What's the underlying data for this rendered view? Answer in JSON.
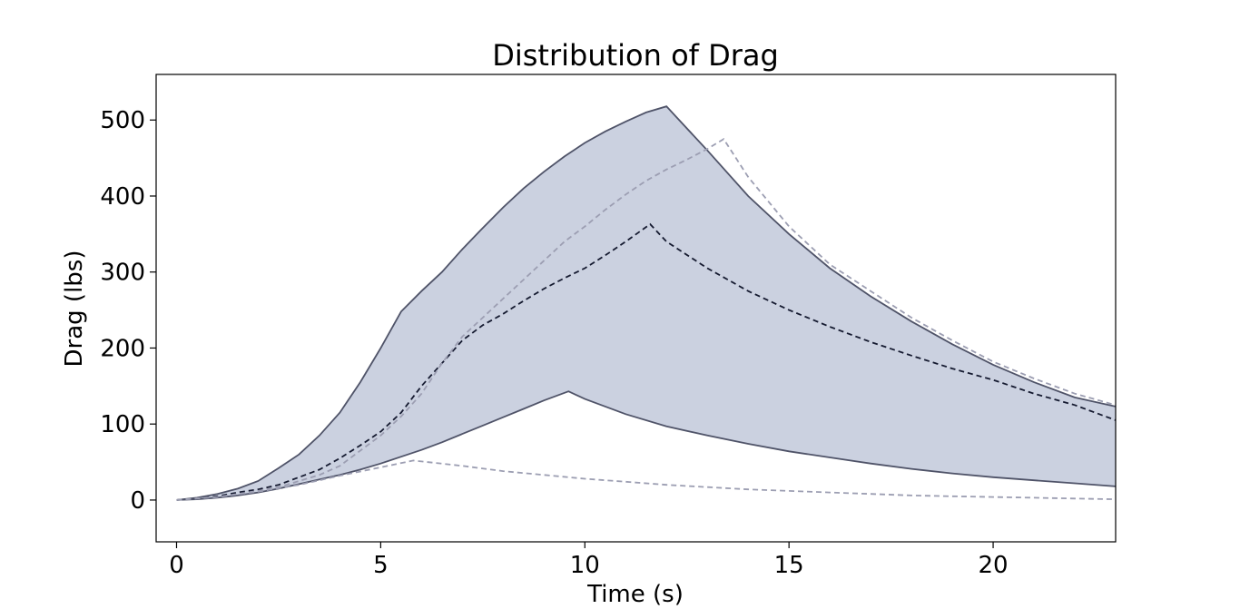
{
  "chart_data": {
    "type": "line",
    "title": "Distribution of Drag",
    "xlabel": "Time (s)",
    "ylabel": "Drag (lbs)",
    "xlim": [
      -0.5,
      23
    ],
    "ylim": [
      -55,
      560
    ],
    "x_ticks": [
      0,
      5,
      10,
      15,
      20
    ],
    "y_ticks": [
      0,
      100,
      200,
      300,
      400,
      500
    ],
    "grid": false,
    "colors": {
      "band_fill": "#cbd1e0",
      "band_edge": "#4f5368",
      "median": "#151a30",
      "extreme": "#9c9eb2"
    },
    "band": {
      "upper": {
        "x": [
          0,
          0.5,
          1,
          1.5,
          2,
          2.5,
          3,
          3.5,
          4,
          4.5,
          5,
          5.5,
          6,
          6.5,
          7,
          7.5,
          8,
          8.5,
          9,
          9.5,
          10,
          10.5,
          11,
          11.5,
          12,
          13,
          14,
          15,
          16,
          17,
          18,
          19,
          20,
          21,
          22,
          23
        ],
        "y": [
          0,
          3,
          8,
          15,
          25,
          42,
          60,
          85,
          115,
          155,
          200,
          248,
          275,
          300,
          330,
          358,
          385,
          410,
          432,
          452,
          470,
          485,
          498,
          510,
          518,
          460,
          400,
          350,
          305,
          268,
          235,
          205,
          178,
          155,
          135,
          123
        ]
      },
      "lower": {
        "x": [
          0,
          0.5,
          1,
          1.5,
          2,
          2.5,
          3,
          3.5,
          4,
          4.5,
          5,
          5.5,
          6,
          6.5,
          7,
          7.5,
          8,
          8.5,
          9,
          9.6,
          10,
          11,
          12,
          13,
          14,
          15,
          16,
          17,
          18,
          19,
          20,
          21,
          22,
          23
        ],
        "y": [
          0,
          1,
          3,
          6,
          10,
          15,
          21,
          27,
          33,
          40,
          48,
          57,
          66,
          76,
          87,
          98,
          109,
          120,
          131,
          143,
          133,
          113,
          97,
          85,
          74,
          64,
          56,
          48,
          41,
          35,
          30,
          26,
          22,
          18
        ]
      }
    },
    "series": [
      {
        "x": [
          0,
          0.5,
          1,
          1.5,
          2,
          2.5,
          3,
          3.5,
          4,
          4.5,
          5,
          5.5,
          6,
          6.5,
          7,
          7.5,
          8,
          8.5,
          9,
          9.5,
          10,
          10.5,
          11,
          11.6,
          12,
          13,
          14,
          15,
          16,
          17,
          18,
          19,
          20,
          21,
          22,
          23
        ],
        "y": [
          0,
          2,
          5,
          10,
          14,
          20,
          30,
          40,
          55,
          72,
          90,
          115,
          150,
          180,
          210,
          230,
          245,
          262,
          278,
          292,
          305,
          322,
          340,
          363,
          340,
          305,
          275,
          250,
          228,
          208,
          190,
          173,
          158,
          140,
          125,
          105
        ]
      },
      {
        "x": [
          0,
          0.5,
          1,
          1.5,
          2,
          2.5,
          3,
          3.5,
          4,
          4.5,
          5,
          5.5,
          6,
          6.5,
          7,
          7.5,
          8,
          8.5,
          9,
          9.5,
          10,
          10.5,
          11,
          11.5,
          12,
          12.5,
          13,
          13.4,
          14,
          15,
          16,
          17,
          18,
          19,
          20,
          21,
          22,
          23
        ],
        "y": [
          0,
          2,
          4,
          8,
          12,
          17,
          25,
          33,
          45,
          65,
          85,
          110,
          140,
          180,
          215,
          240,
          265,
          290,
          315,
          340,
          360,
          382,
          402,
          420,
          435,
          448,
          462,
          475,
          425,
          360,
          310,
          275,
          240,
          210,
          182,
          160,
          140,
          125
        ]
      },
      {
        "x": [
          0,
          1,
          2,
          3,
          4,
          5,
          5.8,
          7,
          8,
          9,
          10,
          11,
          12,
          13,
          14,
          15,
          16,
          17,
          18,
          19,
          20,
          21,
          22,
          23
        ],
        "y": [
          0,
          4,
          11,
          20,
          32,
          43,
          52,
          45,
          38,
          33,
          28,
          24,
          20,
          17,
          14,
          12,
          10,
          8,
          6,
          5,
          4,
          3,
          2,
          1
        ]
      }
    ]
  }
}
